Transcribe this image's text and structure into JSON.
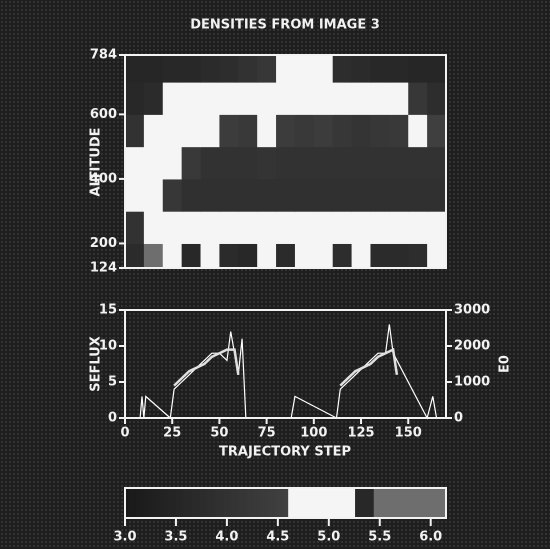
{
  "chart_data": [
    {
      "type": "heatmap",
      "title": "DENSITIES FROM IMAGE 3",
      "ylabel": "ALTITUDE",
      "xlim": [
        0,
        170
      ],
      "ylim": [
        124,
        784
      ],
      "yticks": [
        124,
        200,
        400,
        600,
        784
      ],
      "x": [
        5,
        15,
        25,
        35,
        45,
        55,
        65,
        75,
        85,
        95,
        105,
        115,
        125,
        135,
        145,
        155,
        165
      ],
      "y": [
        150,
        250,
        350,
        450,
        550,
        650,
        750
      ],
      "values": [
        [
          3.7,
          5.5,
          4.9,
          3.6,
          5.0,
          3.7,
          3.6,
          4.9,
          3.7,
          4.9,
          5.0,
          3.8,
          5.0,
          3.7,
          3.7,
          3.8,
          4.9
        ],
        [
          4.0,
          5.0,
          5.0,
          4.9,
          4.9,
          4.9,
          4.8,
          4.9,
          4.9,
          4.9,
          4.9,
          4.9,
          4.9,
          4.9,
          4.8,
          4.9,
          4.9
        ],
        [
          4.8,
          4.9,
          4.2,
          3.9,
          3.9,
          3.9,
          3.9,
          3.9,
          3.9,
          3.9,
          3.9,
          3.9,
          3.9,
          3.9,
          3.9,
          3.9,
          3.9
        ],
        [
          4.9,
          5.0,
          4.8,
          4.3,
          4.0,
          4.0,
          4.0,
          4.1,
          4.0,
          4.0,
          4.0,
          4.0,
          4.0,
          4.0,
          4.0,
          4.0,
          4.0
        ],
        [
          4.0,
          4.9,
          5.0,
          4.9,
          4.7,
          4.4,
          4.3,
          4.6,
          4.4,
          4.3,
          4.4,
          4.2,
          4.1,
          4.2,
          4.3,
          4.6,
          4.5
        ],
        [
          3.6,
          3.7,
          4.8,
          5.0,
          5.0,
          4.9,
          4.8,
          4.9,
          5.0,
          4.9,
          4.8,
          4.9,
          4.9,
          4.8,
          4.8,
          4.2,
          3.8
        ],
        [
          3.5,
          3.5,
          3.6,
          3.6,
          3.7,
          3.8,
          4.0,
          4.2,
          5.0,
          5.0,
          4.8,
          3.8,
          3.7,
          3.6,
          3.6,
          3.5,
          3.5
        ]
      ]
    },
    {
      "type": "line",
      "xlabel": "TRAJECTORY STEP",
      "ylabel": "SEFLUX",
      "y2label": "E0",
      "xlim": [
        0,
        170
      ],
      "ylim": [
        0,
        15
      ],
      "y2lim": [
        0,
        3000
      ],
      "xticks": [
        0,
        25,
        50,
        75,
        100,
        125,
        150
      ],
      "yticks": [
        0,
        5,
        10,
        15
      ],
      "y2ticks": [
        0,
        1000,
        2000,
        3000
      ],
      "series": [
        {
          "color": "#ffffff",
          "x": [
            8,
            9,
            10,
            11,
            24,
            26,
            30,
            34,
            38,
            42,
            46,
            50,
            54,
            56,
            58,
            60,
            62,
            64,
            88,
            90,
            112,
            114,
            118,
            122,
            126,
            130,
            134,
            138,
            140,
            142,
            160,
            163,
            165
          ],
          "values": [
            0,
            3,
            0,
            3,
            0,
            4,
            5,
            6,
            7,
            8,
            9,
            9,
            8,
            12,
            9,
            6,
            11,
            0,
            0,
            3,
            0,
            4,
            5,
            6,
            7,
            8,
            9,
            9,
            13,
            9,
            0,
            3,
            0
          ]
        },
        {
          "color": "#e0e0e0",
          "axis": "y2",
          "x": [
            26,
            30,
            34,
            38,
            42,
            46,
            50,
            54,
            58,
            60,
            null,
            114,
            118,
            122,
            126,
            130,
            134,
            138,
            142,
            144
          ],
          "values": [
            900,
            1100,
            1300,
            1400,
            1500,
            1700,
            1800,
            1900,
            1900,
            1200,
            null,
            900,
            1100,
            1300,
            1400,
            1500,
            1700,
            1800,
            1900,
            1200
          ]
        }
      ]
    },
    {
      "type": "colorbar",
      "xlim": [
        3.0,
        6.15
      ],
      "xticks": [
        {
          "value": 3,
          "label": "3.0"
        },
        {
          "value": 3.5,
          "label": "3.5"
        },
        {
          "value": 4,
          "label": "4.0"
        },
        {
          "value": 4.5,
          "label": "4.5"
        },
        {
          "value": 5,
          "label": "5.0"
        },
        {
          "value": 5.5,
          "label": "5.5"
        },
        {
          "value": 6,
          "label": "6.0"
        }
      ]
    }
  ]
}
